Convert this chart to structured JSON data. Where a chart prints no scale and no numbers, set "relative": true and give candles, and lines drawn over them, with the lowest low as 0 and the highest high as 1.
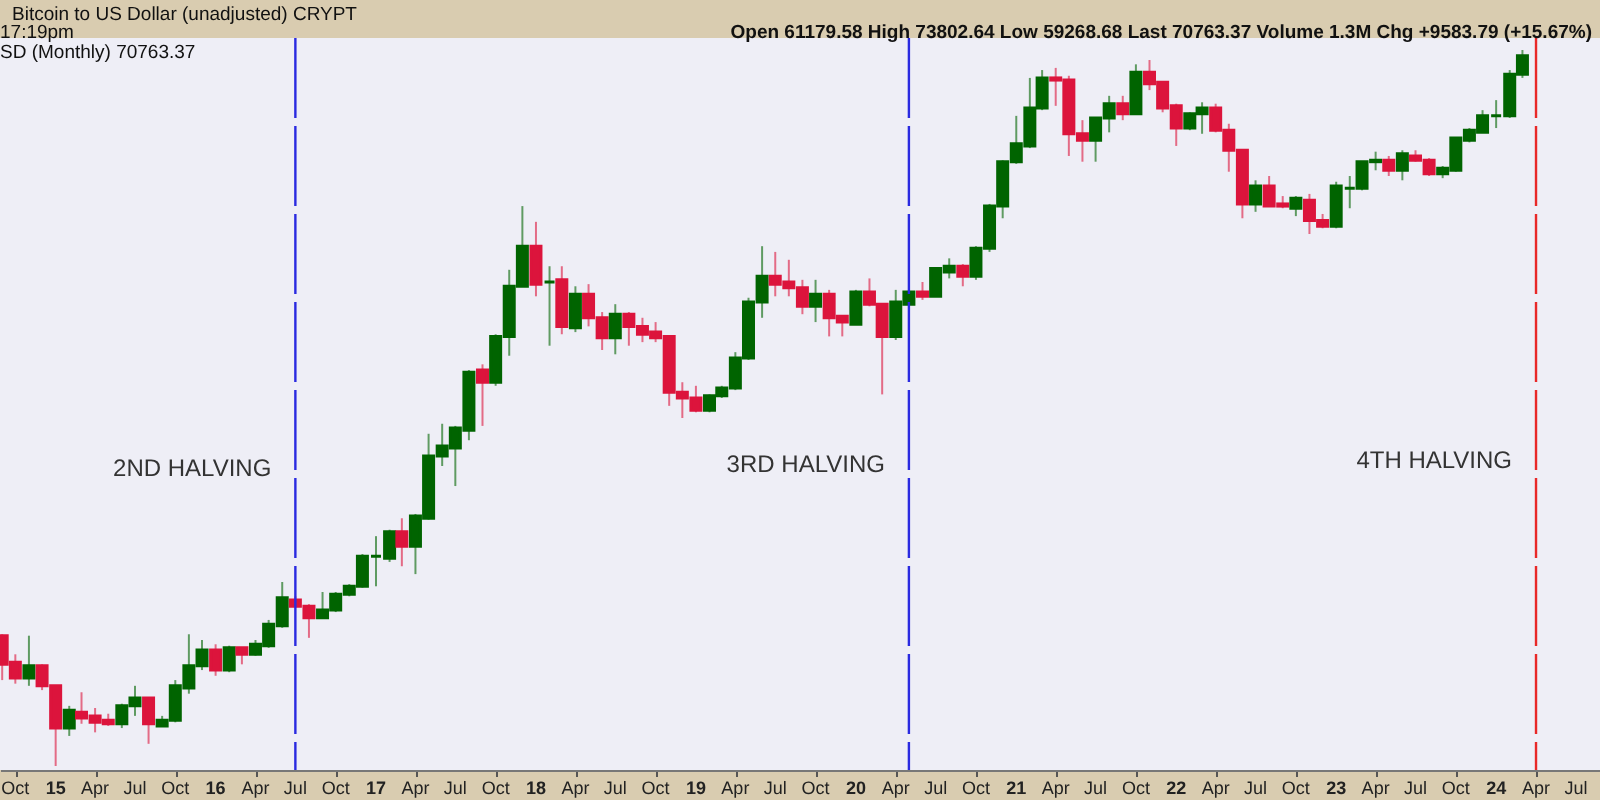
{
  "chart_data": {
    "type": "candlestick",
    "title": "Bitcoin to US Dollar (unadjusted) CRYPT",
    "subtitle": "17:19pm",
    "annotations": [
      "Open 61179.58 High 73802.64 Low 59268.68 Last 70763.37 Volume 1.3M Chg +9583.79 (+15.67%)",
      "SD (Monthly) 70763.37"
    ],
    "relative": true,
    "grid": false,
    "xlim": [
      "2014-08-27",
      "2024-08-25"
    ],
    "xticks": [
      {
        "value": "2014-10",
        "label": "Oct"
      },
      {
        "value": "2015-01",
        "label": "15"
      },
      {
        "value": "2015-04",
        "label": "Apr"
      },
      {
        "value": "2015-07",
        "label": "Jul"
      },
      {
        "value": "2015-10",
        "label": "Oct"
      },
      {
        "value": "2016-01",
        "label": "16"
      },
      {
        "value": "2016-04",
        "label": "Apr"
      },
      {
        "value": "2016-07",
        "label": "Jul"
      },
      {
        "value": "2016-10",
        "label": "Oct"
      },
      {
        "value": "2017-01",
        "label": "17"
      },
      {
        "value": "2017-04",
        "label": "Apr"
      },
      {
        "value": "2017-07",
        "label": "Jul"
      },
      {
        "value": "2017-10",
        "label": "Oct"
      },
      {
        "value": "2018-01",
        "label": "18"
      },
      {
        "value": "2018-04",
        "label": "Apr"
      },
      {
        "value": "2018-07",
        "label": "Jul"
      },
      {
        "value": "2018-10",
        "label": "Oct"
      },
      {
        "value": "2019-01",
        "label": "19"
      },
      {
        "value": "2019-04",
        "label": "Apr"
      },
      {
        "value": "2019-07",
        "label": "Jul"
      },
      {
        "value": "2019-10",
        "label": "Oct"
      },
      {
        "value": "2020-01",
        "label": "20"
      },
      {
        "value": "2020-04",
        "label": "Apr"
      },
      {
        "value": "2020-07",
        "label": "Jul"
      },
      {
        "value": "2020-10",
        "label": "Oct"
      },
      {
        "value": "2021-01",
        "label": "21"
      },
      {
        "value": "2021-04",
        "label": "Apr"
      },
      {
        "value": "2021-07",
        "label": "Jul"
      },
      {
        "value": "2021-10",
        "label": "Oct"
      },
      {
        "value": "2022-01",
        "label": "22"
      },
      {
        "value": "2022-04",
        "label": "Apr"
      },
      {
        "value": "2022-07",
        "label": "Jul"
      },
      {
        "value": "2022-10",
        "label": "Oct"
      },
      {
        "value": "2023-01",
        "label": "23"
      },
      {
        "value": "2023-04",
        "label": "Apr"
      },
      {
        "value": "2023-07",
        "label": "Jul"
      },
      {
        "value": "2023-10",
        "label": "Oct"
      },
      {
        "value": "2024-01",
        "label": "24"
      },
      {
        "value": "2024-04",
        "label": "Apr"
      },
      {
        "value": "2024-07",
        "label": "Jul"
      }
    ],
    "ref_lines": [
      {
        "axis": "x",
        "value": "2016-07",
        "label": "2ND HALVING",
        "color": "#2a2ae0",
        "line_style": "dashed"
      },
      {
        "axis": "x",
        "value": "2020-05",
        "label": "3RD HALVING",
        "color": "#2a2ae0",
        "line_style": "dashed"
      },
      {
        "axis": "x",
        "value": "2024-04",
        "label": "4TH HALVING",
        "color": "#e82828",
        "line_style": "dashed"
      }
    ],
    "x": [
      "2014-09",
      "2014-10",
      "2014-11",
      "2014-12",
      "2015-01",
      "2015-02",
      "2015-03",
      "2015-04",
      "2015-05",
      "2015-06",
      "2015-07",
      "2015-08",
      "2015-09",
      "2015-10",
      "2015-11",
      "2015-12",
      "2016-01",
      "2016-02",
      "2016-03",
      "2016-04",
      "2016-05",
      "2016-06",
      "2016-07",
      "2016-08",
      "2016-09",
      "2016-10",
      "2016-11",
      "2016-12",
      "2017-01",
      "2017-02",
      "2017-03",
      "2017-04",
      "2017-05",
      "2017-06",
      "2017-07",
      "2017-08",
      "2017-09",
      "2017-10",
      "2017-11",
      "2017-12",
      "2018-01",
      "2018-02",
      "2018-03",
      "2018-04",
      "2018-05",
      "2018-06",
      "2018-07",
      "2018-08",
      "2018-09",
      "2018-10",
      "2018-11",
      "2018-12",
      "2019-01",
      "2019-02",
      "2019-03",
      "2019-04",
      "2019-05",
      "2019-06",
      "2019-07",
      "2019-08",
      "2019-09",
      "2019-10",
      "2019-11",
      "2019-12",
      "2020-01",
      "2020-02",
      "2020-03",
      "2020-04",
      "2020-05",
      "2020-06",
      "2020-07",
      "2020-08",
      "2020-09",
      "2020-10",
      "2020-11",
      "2020-12",
      "2021-01",
      "2021-02",
      "2021-03",
      "2021-04",
      "2021-05",
      "2021-06",
      "2021-07",
      "2021-08",
      "2021-09",
      "2021-10",
      "2021-11",
      "2021-12",
      "2022-01",
      "2022-02",
      "2022-03",
      "2022-04",
      "2022-05",
      "2022-06",
      "2022-07",
      "2022-08",
      "2022-09",
      "2022-10",
      "2022-11",
      "2022-12",
      "2023-01",
      "2023-02",
      "2023-03",
      "2023-04",
      "2023-05",
      "2023-06",
      "2023-07",
      "2023-08",
      "2023-09",
      "2023-10",
      "2023-11",
      "2023-12",
      "2024-01",
      "2024-02",
      "2024-03"
    ],
    "ohlc": [
      [
        0.182,
        0.184,
        0.12,
        0.142
      ],
      [
        0.145,
        0.156,
        0.115,
        0.123
      ],
      [
        0.123,
        0.182,
        0.112,
        0.14
      ],
      [
        0.14,
        0.142,
        0.106,
        0.112
      ],
      [
        0.112,
        0.112,
        0,
        0.053
      ],
      [
        0.053,
        0.084,
        0.042,
        0.078
      ],
      [
        0.075,
        0.103,
        0.059,
        0.067
      ],
      [
        0.07,
        0.081,
        0.047,
        0.061
      ],
      [
        0.064,
        0.073,
        0.056,
        0.059
      ],
      [
        0.059,
        0.087,
        0.053,
        0.084
      ],
      [
        0.084,
        0.112,
        0.07,
        0.095
      ],
      [
        0.095,
        0.095,
        0.031,
        0.059
      ],
      [
        0.056,
        0.07,
        0.056,
        0.064
      ],
      [
        0.064,
        0.12,
        0.061,
        0.112
      ],
      [
        0.109,
        0.184,
        0.101,
        0.14
      ],
      [
        0.14,
        0.176,
        0.134,
        0.162
      ],
      [
        0.162,
        0.17,
        0.126,
        0.134
      ],
      [
        0.134,
        0.168,
        0.131,
        0.165
      ],
      [
        0.165,
        0.165,
        0.142,
        0.156
      ],
      [
        0.156,
        0.176,
        0.154,
        0.17
      ],
      [
        0.168,
        0.204,
        0.165,
        0.198
      ],
      [
        0.196,
        0.257,
        0.193,
        0.235
      ],
      [
        0.232,
        0.237,
        0.221,
        0.223
      ],
      [
        0.223,
        0.226,
        0.179,
        0.207
      ],
      [
        0.207,
        0.243,
        0.207,
        0.218
      ],
      [
        0.218,
        0.243,
        0.215,
        0.24
      ],
      [
        0.24,
        0.254,
        0.237,
        0.251
      ],
      [
        0.251,
        0.296,
        0.249,
        0.293
      ],
      [
        0.293,
        0.321,
        0.251,
        0.293
      ],
      [
        0.29,
        0.33,
        0.285,
        0.327
      ],
      [
        0.327,
        0.346,
        0.279,
        0.307
      ],
      [
        0.307,
        0.352,
        0.268,
        0.349
      ],
      [
        0.346,
        0.464,
        0.344,
        0.433
      ],
      [
        0.433,
        0.478,
        0.419,
        0.447
      ],
      [
        0.444,
        0.475,
        0.391,
        0.472
      ],
      [
        0.469,
        0.553,
        0.455,
        0.55
      ],
      [
        0.553,
        0.561,
        0.475,
        0.536
      ],
      [
        0.536,
        0.603,
        0.531,
        0.6
      ],
      [
        0.6,
        0.693,
        0.573,
        0.67
      ],
      [
        0.67,
        0.782,
        0.67,
        0.726
      ],
      [
        0.726,
        0.76,
        0.656,
        0.673
      ],
      [
        0.676,
        0.698,
        0.587,
        0.676
      ],
      [
        0.679,
        0.698,
        0.603,
        0.614
      ],
      [
        0.612,
        0.67,
        0.606,
        0.659
      ],
      [
        0.659,
        0.673,
        0.614,
        0.626
      ],
      [
        0.626,
        0.634,
        0.581,
        0.598
      ],
      [
        0.598,
        0.645,
        0.575,
        0.631
      ],
      [
        0.631,
        0.634,
        0.587,
        0.614
      ],
      [
        0.614,
        0.626,
        0.592,
        0.603
      ],
      [
        0.606,
        0.62,
        0.592,
        0.598
      ],
      [
        0.6,
        0.6,
        0.503,
        0.522
      ],
      [
        0.522,
        0.536,
        0.486,
        0.514
      ],
      [
        0.514,
        0.531,
        0.494,
        0.497
      ],
      [
        0.497,
        0.519,
        0.494,
        0.517
      ],
      [
        0.517,
        0.531,
        0.514,
        0.528
      ],
      [
        0.528,
        0.578,
        0.525,
        0.57
      ],
      [
        0.57,
        0.654,
        0.567,
        0.648
      ],
      [
        0.648,
        0.726,
        0.626,
        0.684
      ],
      [
        0.684,
        0.718,
        0.656,
        0.673
      ],
      [
        0.676,
        0.707,
        0.656,
        0.668
      ],
      [
        0.668,
        0.679,
        0.631,
        0.642
      ],
      [
        0.642,
        0.679,
        0.62,
        0.659
      ],
      [
        0.659,
        0.665,
        0.6,
        0.626
      ],
      [
        0.628,
        0.628,
        0.6,
        0.62
      ],
      [
        0.617,
        0.665,
        0.617,
        0.662
      ],
      [
        0.662,
        0.681,
        0.642,
        0.645
      ],
      [
        0.645,
        0.645,
        0.519,
        0.6
      ],
      [
        0.6,
        0.665,
        0.595,
        0.648
      ],
      [
        0.645,
        0.665,
        0.645,
        0.662
      ],
      [
        0.662,
        0.676,
        0.651,
        0.656
      ],
      [
        0.656,
        0.695,
        0.656,
        0.695
      ],
      [
        0.69,
        0.709,
        0.681,
        0.698
      ],
      [
        0.698,
        0.701,
        0.67,
        0.684
      ],
      [
        0.684,
        0.726,
        0.679,
        0.723
      ],
      [
        0.723,
        0.785,
        0.718,
        0.782
      ],
      [
        0.782,
        0.846,
        0.765,
        0.844
      ],
      [
        0.844,
        0.908,
        0.841,
        0.869
      ],
      [
        0.866,
        0.961,
        0.863,
        0.919
      ],
      [
        0.919,
        0.972,
        0.916,
        0.961
      ],
      [
        0.961,
        0.975,
        0.922,
        0.958
      ],
      [
        0.958,
        0.964,
        0.852,
        0.883
      ],
      [
        0.883,
        0.902,
        0.844,
        0.874
      ],
      [
        0.874,
        0.905,
        0.844,
        0.905
      ],
      [
        0.905,
        0.936,
        0.885,
        0.925
      ],
      [
        0.925,
        0.936,
        0.902,
        0.911
      ],
      [
        0.911,
        0.98,
        0.911,
        0.969
      ],
      [
        0.969,
        0.986,
        0.944,
        0.953
      ],
      [
        0.955,
        0.955,
        0.913,
        0.919
      ],
      [
        0.922,
        0.925,
        0.866,
        0.891
      ],
      [
        0.891,
        0.913,
        0.888,
        0.911
      ],
      [
        0.911,
        0.927,
        0.883,
        0.919
      ],
      [
        0.919,
        0.925,
        0.885,
        0.888
      ],
      [
        0.888,
        0.897,
        0.83,
        0.86
      ],
      [
        0.86,
        0.86,
        0.765,
        0.785
      ],
      [
        0.785,
        0.818,
        0.774,
        0.81
      ],
      [
        0.81,
        0.824,
        0.782,
        0.782
      ],
      [
        0.785,
        0.796,
        0.779,
        0.782
      ],
      [
        0.779,
        0.796,
        0.768,
        0.793
      ],
      [
        0.79,
        0.799,
        0.743,
        0.762
      ],
      [
        0.762,
        0.771,
        0.751,
        0.754
      ],
      [
        0.754,
        0.816,
        0.751,
        0.81
      ],
      [
        0.807,
        0.824,
        0.779,
        0.807
      ],
      [
        0.807,
        0.844,
        0.804,
        0.844
      ],
      [
        0.844,
        0.858,
        0.832,
        0.846
      ],
      [
        0.846,
        0.852,
        0.824,
        0.832
      ],
      [
        0.832,
        0.86,
        0.818,
        0.855
      ],
      [
        0.852,
        0.86,
        0.844,
        0.846
      ],
      [
        0.846,
        0.849,
        0.824,
        0.827
      ],
      [
        0.827,
        0.838,
        0.821,
        0.835
      ],
      [
        0.832,
        0.877,
        0.83,
        0.877
      ],
      [
        0.874,
        0.891,
        0.871,
        0.888
      ],
      [
        0.885,
        0.916,
        0.885,
        0.908
      ],
      [
        0.908,
        0.93,
        0.891,
        0.908
      ],
      [
        0.908,
        0.972,
        0.905,
        0.966
      ],
      [
        0.966,
        1,
        0.961,
        0.992
      ]
    ],
    "colors": [
      "#dc143c",
      "#dc143c",
      "#006400",
      "#dc143c",
      "#dc143c",
      "#006400",
      "#dc143c",
      "#dc143c",
      "#dc143c",
      "#006400",
      "#006400",
      "#dc143c",
      "#006400",
      "#006400",
      "#006400",
      "#006400",
      "#dc143c",
      "#006400",
      "#dc143c",
      "#006400",
      "#006400",
      "#006400",
      "#dc143c",
      "#dc143c",
      "#006400",
      "#006400",
      "#006400",
      "#006400",
      "#006400",
      "#006400",
      "#dc143c",
      "#006400",
      "#006400",
      "#006400",
      "#006400",
      "#006400",
      "#dc143c",
      "#006400",
      "#006400",
      "#006400",
      "#dc143c",
      "#006400",
      "#dc143c",
      "#006400",
      "#dc143c",
      "#dc143c",
      "#006400",
      "#dc143c",
      "#dc143c",
      "#dc143c",
      "#dc143c",
      "#dc143c",
      "#dc143c",
      "#006400",
      "#006400",
      "#006400",
      "#006400",
      "#006400",
      "#dc143c",
      "#dc143c",
      "#dc143c",
      "#006400",
      "#dc143c",
      "#dc143c",
      "#006400",
      "#dc143c",
      "#dc143c",
      "#006400",
      "#006400",
      "#dc143c",
      "#006400",
      "#006400",
      "#dc143c",
      "#006400",
      "#006400",
      "#006400",
      "#006400",
      "#006400",
      "#006400",
      "#dc143c",
      "#dc143c",
      "#dc143c",
      "#006400",
      "#006400",
      "#dc143c",
      "#006400",
      "#dc143c",
      "#dc143c",
      "#dc143c",
      "#006400",
      "#006400",
      "#dc143c",
      "#dc143c",
      "#dc143c",
      "#006400",
      "#dc143c",
      "#dc143c",
      "#006400",
      "#dc143c",
      "#dc143c",
      "#006400",
      "#006400",
      "#006400",
      "#006400",
      "#dc143c",
      "#006400",
      "#dc143c",
      "#dc143c",
      "#006400",
      "#006400",
      "#006400",
      "#006400",
      "#006400",
      "#006400",
      "#006400"
    ]
  }
}
